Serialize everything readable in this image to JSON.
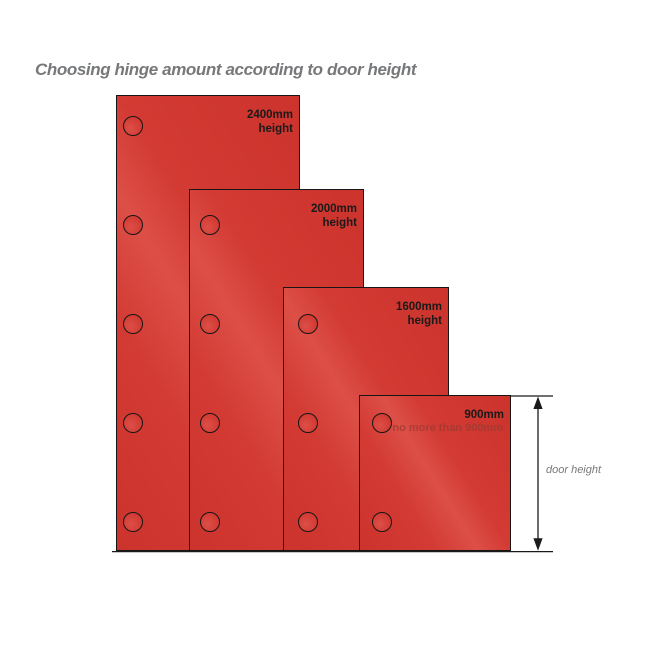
{
  "title": "Choosing hinge amount according to door height",
  "dimension": {
    "label": "door height"
  },
  "doors": [
    {
      "id": "door-2400mm",
      "height_label": [
        "2400mm",
        "height"
      ],
      "hinges": 5
    },
    {
      "id": "door-2000mm",
      "height_label": [
        "2000mm",
        "height"
      ],
      "hinges": 4
    },
    {
      "id": "door-1600mm",
      "height_label": [
        "1600mm",
        "height"
      ],
      "hinges": 3
    },
    {
      "id": "door-900mm",
      "height_label": [
        "900mm"
      ],
      "hinges": 2,
      "note": "no more than 900mm"
    }
  ],
  "colors": {
    "door_fill": "#d23a33",
    "door_highlight": "#dc4f47",
    "door_dark": "#cb332c",
    "door_outline": "#161616",
    "label_text": "#1a1a1a",
    "note_text": "#9c3a34",
    "title_text": "#77787a",
    "dimension_line": "#1a1a1a"
  }
}
